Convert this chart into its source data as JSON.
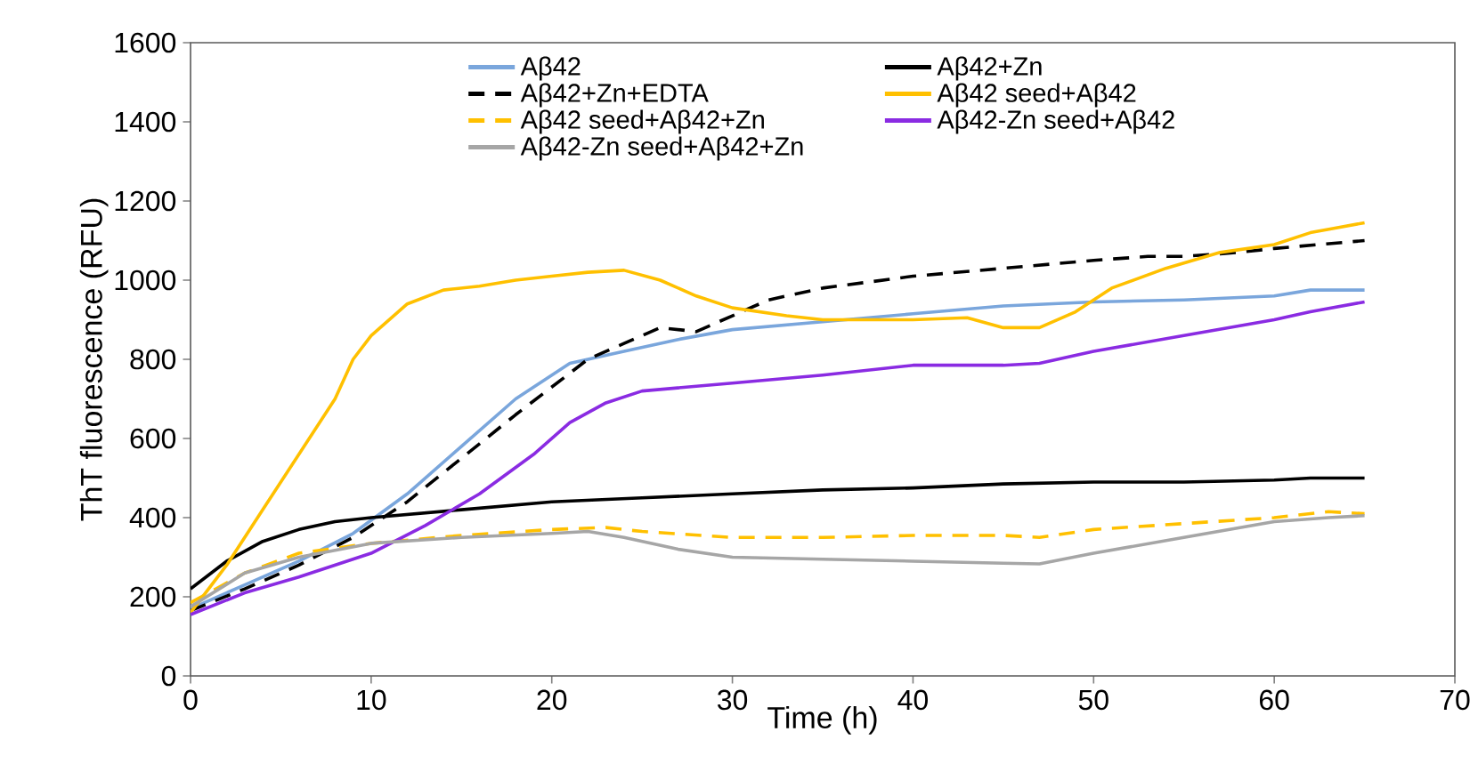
{
  "chart_data": {
    "type": "line",
    "xlabel": "Time (h)",
    "ylabel": "ThT fluorescence (RFU)",
    "xlim": [
      0,
      70
    ],
    "xticks": [
      0,
      10,
      20,
      30,
      40,
      50,
      60,
      70
    ],
    "ylim": [
      0,
      1600
    ],
    "yticks": [
      0,
      200,
      400,
      600,
      800,
      1000,
      1200,
      1400,
      1600
    ],
    "grid": false,
    "legend": "top",
    "series": [
      {
        "name": "Aβ42",
        "color": "#7aa6dc",
        "line_style": "solid",
        "x": [
          0,
          3,
          6,
          9,
          12,
          15,
          18,
          21,
          24,
          27,
          30,
          35,
          40,
          45,
          50,
          55,
          60,
          62,
          65
        ],
        "values": [
          170,
          230,
          290,
          360,
          460,
          580,
          700,
          790,
          820,
          850,
          875,
          895,
          915,
          935,
          945,
          950,
          960,
          975,
          975
        ]
      },
      {
        "name": "Aβ42+Zn",
        "color": "#000000",
        "line_style": "solid",
        "x": [
          0,
          2,
          4,
          6,
          8,
          10,
          15,
          20,
          25,
          30,
          35,
          40,
          45,
          50,
          55,
          60,
          62,
          65
        ],
        "values": [
          220,
          290,
          340,
          370,
          390,
          400,
          420,
          440,
          450,
          460,
          470,
          475,
          485,
          490,
          490,
          495,
          500,
          500
        ]
      },
      {
        "name": "Aβ42+Zn+EDTA",
        "color": "#000000",
        "line_style": "dashed",
        "x": [
          0,
          3,
          6,
          9,
          12,
          15,
          18,
          20,
          22,
          24,
          26,
          28,
          30,
          32,
          35,
          40,
          45,
          50,
          53,
          55,
          58,
          60,
          65
        ],
        "values": [
          165,
          220,
          280,
          350,
          440,
          550,
          660,
          730,
          800,
          840,
          880,
          870,
          910,
          950,
          980,
          1010,
          1030,
          1050,
          1060,
          1060,
          1070,
          1080,
          1100
        ]
      },
      {
        "name": "Aβ42 seed+Aβ42",
        "color": "#ffc000",
        "line_style": "solid",
        "x": [
          0,
          2,
          4,
          6,
          8,
          9,
          10,
          12,
          14,
          16,
          18,
          20,
          22,
          24,
          26,
          28,
          30,
          33,
          35,
          40,
          43,
          45,
          47,
          49,
          51,
          54,
          57,
          60,
          62,
          65
        ],
        "values": [
          160,
          280,
          420,
          560,
          700,
          800,
          860,
          940,
          975,
          985,
          1000,
          1010,
          1020,
          1025,
          1000,
          960,
          930,
          910,
          900,
          900,
          905,
          880,
          880,
          920,
          980,
          1030,
          1070,
          1090,
          1120,
          1145
        ]
      },
      {
        "name": "Aβ42 seed+Aβ42+Zn",
        "color": "#ffc000",
        "line_style": "dashed",
        "x": [
          0,
          3,
          6,
          10,
          15,
          20,
          23,
          25,
          30,
          35,
          40,
          45,
          47,
          50,
          55,
          60,
          63,
          65
        ],
        "values": [
          185,
          260,
          310,
          335,
          355,
          370,
          375,
          365,
          350,
          350,
          355,
          355,
          350,
          370,
          385,
          400,
          415,
          410
        ]
      },
      {
        "name": "Aβ42-Zn seed+Aβ42",
        "color": "#8a2be2",
        "line_style": "solid",
        "x": [
          0,
          3,
          6,
          10,
          13,
          16,
          19,
          21,
          23,
          25,
          30,
          35,
          40,
          45,
          47,
          50,
          55,
          60,
          62,
          65
        ],
        "values": [
          155,
          210,
          250,
          310,
          380,
          460,
          560,
          640,
          690,
          720,
          740,
          760,
          785,
          785,
          790,
          820,
          860,
          900,
          920,
          945
        ]
      },
      {
        "name": "Aβ42-Zn seed+Aβ42+Zn",
        "color": "#a6a6a6",
        "line_style": "solid",
        "x": [
          0,
          3,
          6,
          10,
          15,
          20,
          22,
          24,
          27,
          30,
          35,
          40,
          45,
          47,
          50,
          55,
          60,
          63,
          65
        ],
        "values": [
          175,
          260,
          300,
          335,
          350,
          360,
          365,
          350,
          320,
          300,
          295,
          290,
          285,
          283,
          310,
          350,
          390,
          400,
          405
        ]
      }
    ]
  }
}
